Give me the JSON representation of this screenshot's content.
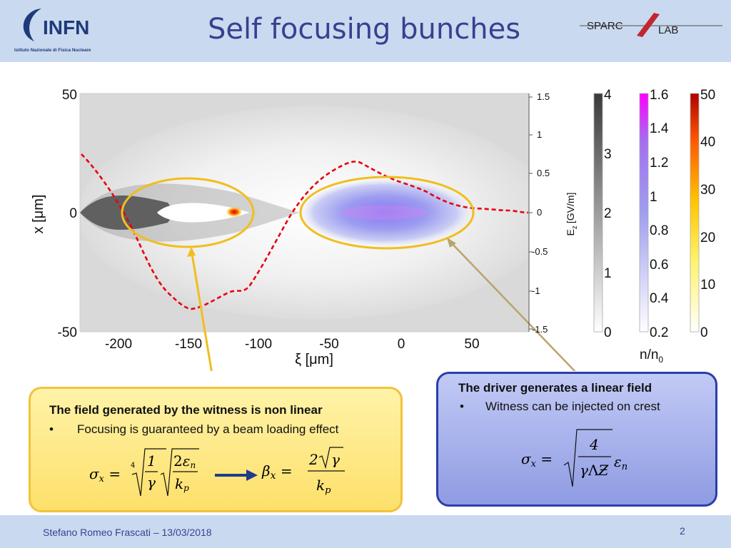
{
  "header": {
    "title": "Self focusing bunches",
    "infn_logo": {
      "text": "INFN",
      "subtitle": "Istituto Nazionale di Fisica Nucleare"
    },
    "sparc_logo": {
      "text1": "SPARC",
      "text2": "LAB"
    }
  },
  "plot": {
    "y_label": "x [μm]",
    "x_label": "ξ [μm]",
    "x_ticks": [
      "-200",
      "-150",
      "-100",
      "-50",
      "0",
      "50"
    ],
    "y_ticks": [
      "50",
      "0",
      "-50"
    ],
    "ez_label": "E",
    "ez_sub": "z",
    "ez_unit": "[GV/m]",
    "ez_ticks": [
      "1.5",
      "1",
      "0.5",
      "0",
      "-0.5",
      "-1",
      "-1.5"
    ],
    "colorbar_gray_ticks": [
      "4",
      "3",
      "2",
      "1",
      "0"
    ],
    "colorbar_blue_ticks": [
      "1.6",
      "1.4",
      "1.2",
      "1",
      "0.8",
      "0.6",
      "0.4",
      "0.2"
    ],
    "colorbar_hot_ticks": [
      "50",
      "40",
      "30",
      "20",
      "10",
      "0"
    ],
    "n_label": "n/n",
    "n_sub": "0"
  },
  "callout_left": {
    "heading": "The field generated by the witness is non linear",
    "bullet": "•",
    "text": "Focusing is guaranteed by a beam loading effect"
  },
  "callout_right": {
    "heading": "The driver generates a linear field",
    "bullet": "•",
    "text": "Witness can be injected on crest"
  },
  "footer": {
    "author": "Stefano Romeo Frascati – 13/03/2018",
    "page": "2"
  }
}
